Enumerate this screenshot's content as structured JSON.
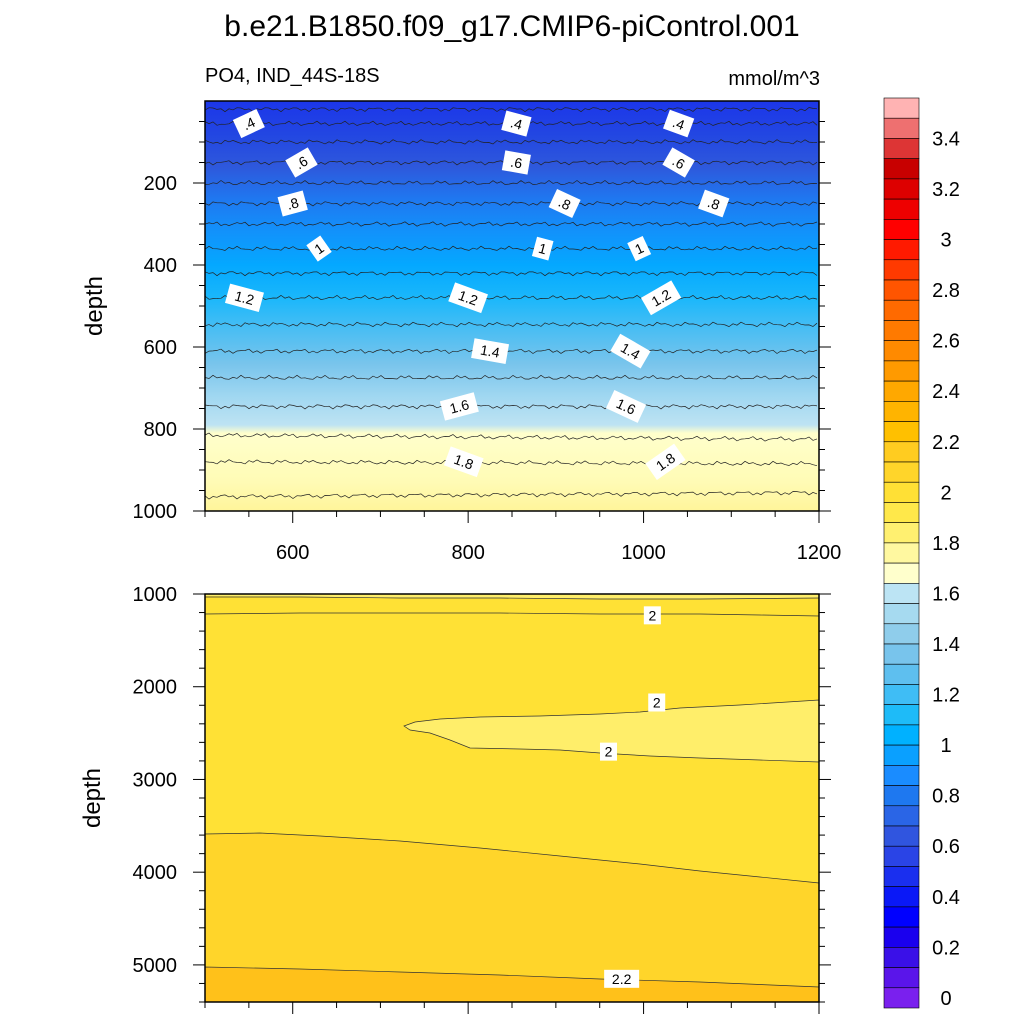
{
  "figure": {
    "title": "b.e21.B1850.f09_g17.CMIP6-piControl.001",
    "subtitle_left": "PO4, IND_44S-18S",
    "subtitle_right": "mmol/m^3"
  },
  "chart_data": [
    {
      "type": "heatmap",
      "panel": "upper",
      "variable": "PO4",
      "region": "IND_44S-18S",
      "units": "mmol/m^3",
      "xlabel": "",
      "ylabel": "depth",
      "xlim": [
        500,
        1200
      ],
      "ylim": [
        1000,
        0
      ],
      "x_ticks": [
        600,
        800,
        1000,
        1200
      ],
      "y_ticks": [
        200,
        400,
        600,
        800,
        1000
      ],
      "contour_levels": [
        0.3,
        0.4,
        0.5,
        0.6,
        0.7,
        0.8,
        0.9,
        1.0,
        1.1,
        1.2,
        1.3,
        1.4,
        1.5,
        1.6,
        1.7,
        1.8,
        1.9
      ],
      "contour_depths": [
        {
          "level": 0.3,
          "depth_start": 20,
          "depth_end": 20
        },
        {
          "level": 0.4,
          "depth_start": 55,
          "depth_end": 55
        },
        {
          "level": 0.5,
          "depth_start": 100,
          "depth_end": 100
        },
        {
          "level": 0.6,
          "depth_start": 150,
          "depth_end": 150
        },
        {
          "level": 0.7,
          "depth_start": 200,
          "depth_end": 200
        },
        {
          "level": 0.8,
          "depth_start": 250,
          "depth_end": 250
        },
        {
          "level": 0.9,
          "depth_start": 300,
          "depth_end": 300
        },
        {
          "level": 1.0,
          "depth_start": 360,
          "depth_end": 360
        },
        {
          "level": 1.1,
          "depth_start": 420,
          "depth_end": 420
        },
        {
          "level": 1.2,
          "depth_start": 480,
          "depth_end": 480
        },
        {
          "level": 1.3,
          "depth_start": 545,
          "depth_end": 545
        },
        {
          "level": 1.4,
          "depth_start": 610,
          "depth_end": 610
        },
        {
          "level": 1.5,
          "depth_start": 675,
          "depth_end": 675
        },
        {
          "level": 1.6,
          "depth_start": 745,
          "depth_end": 745
        },
        {
          "level": 1.7,
          "depth_start": 815,
          "depth_end": 825
        },
        {
          "level": 1.8,
          "depth_start": 880,
          "depth_end": 885
        },
        {
          "level": 1.9,
          "depth_start": 965,
          "depth_end": 955
        }
      ],
      "contour_labels": [
        {
          "text": ".4",
          "x": 550,
          "depth": 55
        },
        {
          "text": ".4",
          "x": 855,
          "depth": 55
        },
        {
          "text": ".4",
          "x": 1040,
          "depth": 55
        },
        {
          "text": ".6",
          "x": 610,
          "depth": 150
        },
        {
          "text": ".6",
          "x": 855,
          "depth": 150
        },
        {
          "text": ".6",
          "x": 1040,
          "depth": 150
        },
        {
          "text": ".8",
          "x": 600,
          "depth": 250
        },
        {
          "text": ".8",
          "x": 910,
          "depth": 250
        },
        {
          "text": ".8",
          "x": 1080,
          "depth": 250
        },
        {
          "text": "1",
          "x": 630,
          "depth": 360
        },
        {
          "text": "1",
          "x": 885,
          "depth": 360
        },
        {
          "text": "1",
          "x": 995,
          "depth": 360
        },
        {
          "text": "1.2",
          "x": 545,
          "depth": 480
        },
        {
          "text": "1.2",
          "x": 800,
          "depth": 480
        },
        {
          "text": "1.2",
          "x": 1020,
          "depth": 480
        },
        {
          "text": "1.4",
          "x": 825,
          "depth": 610
        },
        {
          "text": "1.4",
          "x": 985,
          "depth": 610
        },
        {
          "text": "1.6",
          "x": 790,
          "depth": 745
        },
        {
          "text": "1.6",
          "x": 980,
          "depth": 745
        },
        {
          "text": "1.8",
          "x": 795,
          "depth": 880
        },
        {
          "text": "1.8",
          "x": 1025,
          "depth": 880
        }
      ]
    },
    {
      "type": "heatmap",
      "panel": "lower",
      "xlabel": "",
      "ylabel": "depth",
      "xlim": [
        500,
        1200
      ],
      "ylim": [
        5400,
        1000
      ],
      "y_ticks": [
        1000,
        2000,
        3000,
        4000,
        5000
      ],
      "regions": [
        {
          "range": "1.9-2.0",
          "depth_top": 1000,
          "depth_bottom_start": 1060,
          "depth_bottom_end": 1040
        },
        {
          "range": "2.0-2.1",
          "depth_top": 1060,
          "depth_bottom_start": 3580,
          "depth_bottom_end": 4100
        },
        {
          "range": "1.9-2.0",
          "note": "tongue",
          "x_tip": 720,
          "depth_top_end": 2120,
          "depth_bottom_end": 2800,
          "depth_tip": 2430
        },
        {
          "range": "2.1-2.2",
          "depth_top_start": 3580,
          "depth_top_end": 4100,
          "depth_bottom_start": 4980,
          "depth_bottom_end": 5200
        },
        {
          "range": "2.2-2.3",
          "depth_top_start": 4980,
          "depth_top_end": 5200,
          "depth_bottom": 5400
        }
      ],
      "contour_labels": [
        {
          "text": "2",
          "x": 1010,
          "depth": 1230
        },
        {
          "text": "2",
          "x": 1015,
          "depth": 2170
        },
        {
          "text": "2",
          "x": 960,
          "depth": 2700
        },
        {
          "text": "2.2",
          "x": 975,
          "depth": 5150
        }
      ]
    }
  ],
  "colorbar": {
    "labels": [
      "3.4",
      "3.2",
      "3",
      "2.8",
      "2.6",
      "2.4",
      "2.2",
      "2",
      "1.8",
      "1.6",
      "1.4",
      "1.2",
      "1",
      "0.8",
      "0.6",
      "0.4",
      "0.2",
      "0"
    ],
    "colors_top_to_bottom": [
      "#ffb3b3",
      "#ee7070",
      "#dd3535",
      "#c80000",
      "#dd0000",
      "#ee0000",
      "#ff0000",
      "#ff1a00",
      "#ff3a00",
      "#ff5500",
      "#ff6a00",
      "#ff7a00",
      "#ff8a00",
      "#ff9a00",
      "#ffa800",
      "#ffb400",
      "#ffc000",
      "#ffcc20",
      "#ffd52a",
      "#ffe035",
      "#ffe84a",
      "#fff070",
      "#fff8a0",
      "#ffffcc",
      "#bce4f4",
      "#a6daf0",
      "#8fcdeb",
      "#78c4ec",
      "#5ebfef",
      "#3fbdf5",
      "#1ebbf8",
      "#00b1ff",
      "#0aa0ff",
      "#1a8cff",
      "#1e78f0",
      "#2a65e6",
      "#3055df",
      "#2a44e6",
      "#1a2fef",
      "#0a18f7",
      "#0000ff",
      "#1a00ee",
      "#3a10e8",
      "#5a15ea",
      "#7a20ee"
    ]
  }
}
